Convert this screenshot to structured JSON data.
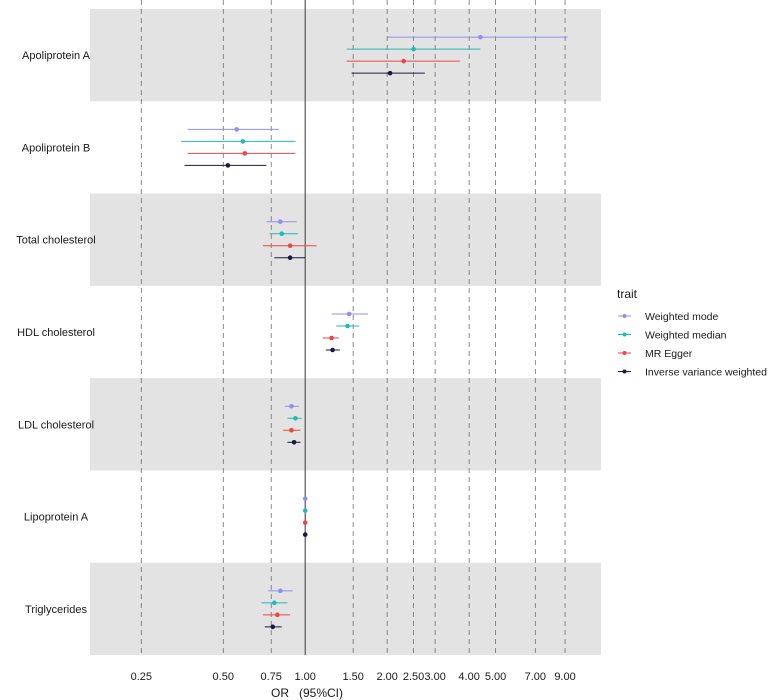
{
  "chart_data": {
    "type": "forest",
    "xlabel": "OR   (95%CI)",
    "x_scale": "log",
    "xlim": [
      0.162,
      12.2
    ],
    "x_ticks": [
      {
        "value": 0.25,
        "label": "0.25"
      },
      {
        "value": 0.5,
        "label": "0.50"
      },
      {
        "value": 0.75,
        "label": "0.75"
      },
      {
        "value": 1.0,
        "label": "1.00"
      },
      {
        "value": 1.5,
        "label": "1.50"
      },
      {
        "value": 2.0,
        "label": "2.00"
      },
      {
        "value": 2.5,
        "label": "2.50"
      },
      {
        "value": 3.0,
        "label": "3.00"
      },
      {
        "value": 4.0,
        "label": "4.00"
      },
      {
        "value": 5.0,
        "label": "5.00"
      },
      {
        "value": 7.0,
        "label": "7.00"
      },
      {
        "value": 9.0,
        "label": "9.00"
      }
    ],
    "reference_line": 1.0,
    "grid": "dashed vertical at ticks",
    "categories": [
      "Apoliprotein A",
      "Apoliprotein B",
      "Total cholesterol",
      "HDL cholesterol",
      "LDL cholesterol",
      "Lipoprotein A",
      "Triglycerides"
    ],
    "legend": {
      "title": "trait",
      "position": "right"
    },
    "series": [
      {
        "name": "Weighted mode",
        "color": "#8f8ff0",
        "or": [
          4.4,
          0.56,
          0.81,
          1.45,
          0.89,
          1.0,
          0.81
        ],
        "lower": [
          2.0,
          0.37,
          0.72,
          1.25,
          0.84,
          0.995,
          0.73
        ],
        "upper": [
          9.2,
          0.8,
          0.93,
          1.7,
          0.95,
          1.005,
          0.9
        ]
      },
      {
        "name": "Weighted median",
        "color": "#1fbab8",
        "or": [
          2.5,
          0.59,
          0.82,
          1.43,
          0.92,
          1.0,
          0.77
        ],
        "lower": [
          1.42,
          0.35,
          0.74,
          1.3,
          0.86,
          0.995,
          0.69
        ],
        "upper": [
          4.4,
          0.92,
          0.94,
          1.58,
          0.97,
          1.005,
          0.86
        ]
      },
      {
        "name": "MR Egger",
        "color": "#ee4444",
        "or": [
          2.3,
          0.6,
          0.88,
          1.25,
          0.89,
          1.0,
          0.79
        ],
        "lower": [
          1.42,
          0.37,
          0.7,
          1.16,
          0.83,
          0.995,
          0.7
        ],
        "upper": [
          3.7,
          0.92,
          1.1,
          1.33,
          0.96,
          1.005,
          0.88
        ]
      },
      {
        "name": "Inverse variance weighted",
        "color": "#1a1a40",
        "or": [
          2.05,
          0.52,
          0.88,
          1.26,
          0.91,
          1.0,
          0.76
        ],
        "lower": [
          1.48,
          0.36,
          0.77,
          1.19,
          0.86,
          0.995,
          0.71
        ],
        "upper": [
          2.75,
          0.72,
          1.0,
          1.34,
          0.96,
          1.005,
          0.82
        ]
      }
    ]
  }
}
